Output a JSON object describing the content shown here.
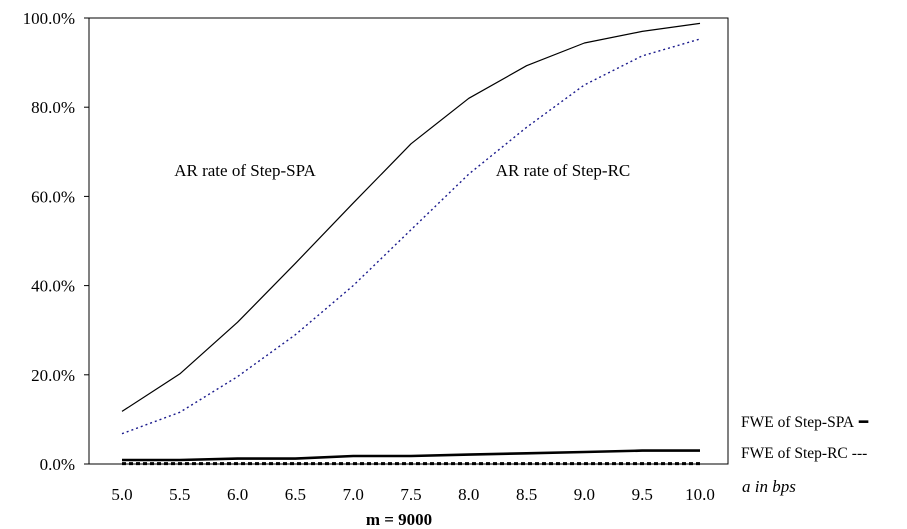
{
  "chart_data": {
    "type": "line",
    "title": "",
    "caption": "m = 9000",
    "xlabel": "a in bps",
    "ylabel": "",
    "x": [
      5.0,
      5.5,
      6.0,
      6.5,
      7.0,
      7.5,
      8.0,
      8.5,
      9.0,
      9.5,
      10.0
    ],
    "x_tick_labels": [
      "5.0",
      "5.5",
      "6.0",
      "6.5",
      "7.0",
      "7.5",
      "8.0",
      "8.5",
      "9.0",
      "9.5",
      "10.0"
    ],
    "y_tick_values": [
      0,
      20,
      40,
      60,
      80,
      100
    ],
    "y_tick_labels": [
      "0.0%",
      "20.0%",
      "40.0%",
      "60.0%",
      "80.0%",
      "100.0%"
    ],
    "ylim": [
      0,
      100
    ],
    "grid": false,
    "series": [
      {
        "name": "AR rate of Step-SPA",
        "label_kind": "annotation",
        "style": "solid-thin",
        "color": "#000000",
        "values": [
          11.8,
          20.2,
          31.8,
          45.0,
          58.5,
          71.8,
          82.0,
          89.3,
          94.4,
          97.0,
          98.8
        ]
      },
      {
        "name": "AR rate of Step-RC",
        "label_kind": "annotation",
        "style": "dotted",
        "color": "#1a1a8c",
        "values": [
          6.8,
          11.6,
          19.6,
          29.0,
          40.0,
          52.5,
          65.0,
          75.5,
          85.0,
          91.5,
          95.3
        ]
      },
      {
        "name": "FWE of Step-SPA",
        "label_kind": "legend",
        "legend_marker": "━",
        "style": "solid-thick",
        "color": "#000000",
        "values": [
          0.9,
          0.9,
          1.2,
          1.2,
          1.8,
          1.8,
          2.1,
          2.4,
          2.7,
          3.0,
          3.0
        ]
      },
      {
        "name": "FWE of Step-RC",
        "label_kind": "legend",
        "legend_marker": "---",
        "style": "dashed-thick",
        "color": "#000000",
        "values": [
          0.1,
          0.1,
          0.1,
          0.1,
          0.1,
          0.1,
          0.1,
          0.1,
          0.1,
          0.1,
          0.1
        ]
      }
    ]
  }
}
